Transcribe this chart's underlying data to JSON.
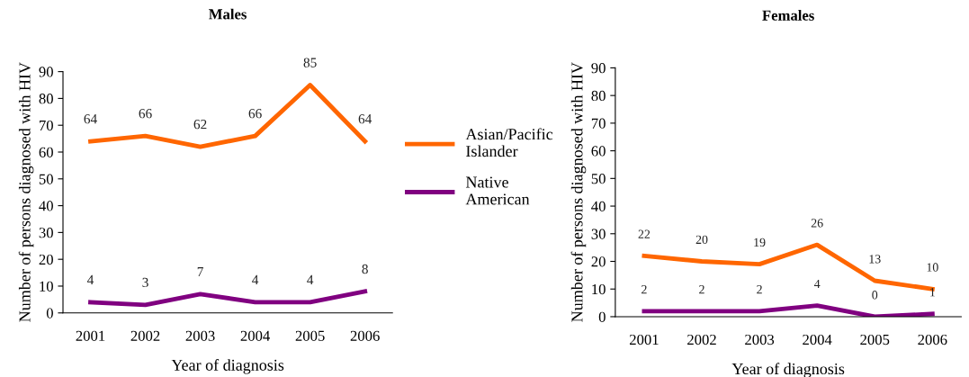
{
  "chart_data": [
    {
      "type": "line",
      "title": "Males",
      "xlabel": "Year of diagnosis",
      "ylabel": "Number of persons diagnosed with HIV",
      "categories": [
        "2001",
        "2002",
        "2003",
        "2004",
        "2005",
        "2006"
      ],
      "series": [
        {
          "name": "Asian/Pacific Islander",
          "color": "#ff6600",
          "values": [
            64,
            66,
            62,
            66,
            85,
            64
          ]
        },
        {
          "name": "Native American",
          "color": "#800080",
          "values": [
            4,
            3,
            7,
            4,
            4,
            8
          ]
        }
      ],
      "ylim": [
        0,
        90
      ],
      "yticks": [
        0,
        10,
        20,
        30,
        40,
        50,
        60,
        70,
        80,
        90
      ],
      "data_labels": true,
      "legend": "right",
      "grid": false,
      "marker": "none",
      "line_style": "solid"
    },
    {
      "type": "line",
      "title": "Females",
      "xlabel": "Year of diagnosis",
      "ylabel": "Number of persons diagnosed with HIV",
      "categories": [
        "2001",
        "2002",
        "2003",
        "2004",
        "2005",
        "2006"
      ],
      "series": [
        {
          "color": "#ff6600",
          "values": [
            22,
            20,
            19,
            26,
            13,
            10
          ]
        },
        {
          "color": "#800080",
          "values": [
            2,
            2,
            2,
            4,
            0,
            1
          ]
        }
      ],
      "ylim": [
        0,
        90
      ],
      "yticks": [
        0,
        10,
        20,
        30,
        40,
        50,
        60,
        70,
        80,
        90
      ],
      "data_labels": true,
      "grid": false,
      "marker": "none",
      "line_style": "solid"
    }
  ]
}
